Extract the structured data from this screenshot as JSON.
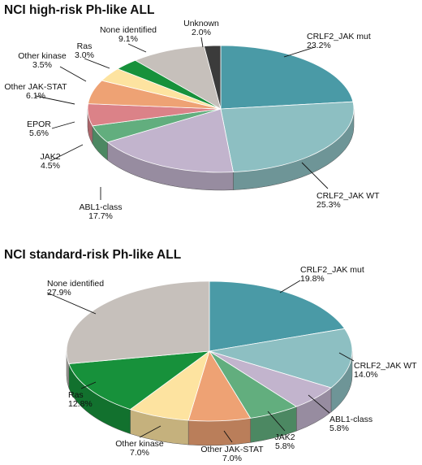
{
  "chart_data": [
    {
      "type": "pie",
      "title": "NCI high-risk Ph-like ALL",
      "slices": [
        {
          "name": "CRLF2_JAK mut",
          "value": 23.2,
          "label": "23.2%",
          "color": "#4a9aa6"
        },
        {
          "name": "CRLF2_JAK WT",
          "value": 25.3,
          "label": "25.3%",
          "color": "#8dbfc2"
        },
        {
          "name": "ABL1-class",
          "value": 17.7,
          "label": "17.7%",
          "color": "#c2b4cd"
        },
        {
          "name": "JAK2",
          "value": 4.5,
          "label": "4.5%",
          "color": "#62ae7e"
        },
        {
          "name": "EPOR",
          "value": 5.6,
          "label": "5.6%",
          "color": "#db8288"
        },
        {
          "name": "Other JAK-STAT",
          "value": 6.1,
          "label": "6.1%",
          "color": "#eea274"
        },
        {
          "name": "Other kinase",
          "value": 3.5,
          "label": "3.5%",
          "color": "#fde3a0"
        },
        {
          "name": "Ras",
          "value": 3.0,
          "label": "3.0%",
          "color": "#17913b"
        },
        {
          "name": "None identified",
          "value": 9.1,
          "label": "9.1%",
          "color": "#c6c0bb"
        },
        {
          "name": "Unknown",
          "value": 2.0,
          "label": "2.0%",
          "color": "#3b3b3b"
        }
      ]
    },
    {
      "type": "pie",
      "title": "NCI standard-risk Ph-like ALL",
      "slices": [
        {
          "name": "CRLF2_JAK mut",
          "value": 19.8,
          "label": "19.8%",
          "color": "#4a9aa6"
        },
        {
          "name": "CRLF2_JAK WT",
          "value": 14.0,
          "label": "14.0%",
          "color": "#8dbfc2"
        },
        {
          "name": "ABL1-class",
          "value": 5.8,
          "label": "5.8%",
          "color": "#c2b4cd"
        },
        {
          "name": "JAK2",
          "value": 5.8,
          "label": "5.8%",
          "color": "#62ae7e"
        },
        {
          "name": "Other JAK-STAT",
          "value": 7.0,
          "label": "7.0%",
          "color": "#eea274"
        },
        {
          "name": "Other kinase",
          "value": 7.0,
          "label": "7.0%",
          "color": "#fde3a0"
        },
        {
          "name": "Ras",
          "value": 12.8,
          "label": "12.8%",
          "color": "#17913b"
        },
        {
          "name": "None identified",
          "value": 27.9,
          "label": "27.9%",
          "color": "#c6c0bb"
        }
      ]
    }
  ]
}
